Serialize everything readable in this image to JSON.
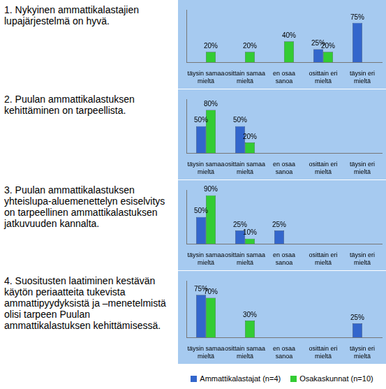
{
  "chart_data": [
    {
      "type": "bar",
      "title": "1. Nykyinen ammattikalastajien lupajärjestelmä on hyvä.",
      "categories": [
        "täysin samaa mieltä",
        "osittain samaa mieltä",
        "en osaa sanoa",
        "osittain eri mieltä",
        "täysin eri mieltä"
      ],
      "series": [
        {
          "name": "Ammattikalastajat (n=4)",
          "color": "#3366cc",
          "values": [
            null,
            null,
            null,
            25,
            75
          ],
          "value_labels": [
            null,
            null,
            null,
            "25%",
            "75%"
          ]
        },
        {
          "name": "Osakaskunnat (n=10)",
          "color": "#33cc33",
          "values": [
            20,
            20,
            40,
            20,
            null
          ],
          "value_labels": [
            "20%",
            "20%",
            "40%",
            "20%",
            null
          ]
        }
      ],
      "ylim": [
        0,
        100
      ],
      "grid": false,
      "data_labels": true,
      "tick_labels": "x"
    },
    {
      "type": "bar",
      "title": "2. Puulan ammattikalastuksen kehittäminen on tarpeellista.",
      "categories": [
        "täysin samaa mieltä",
        "osittain samaa mieltä",
        "en osaa sanoa",
        "osittain eri mieltä",
        "täysin eri mieltä"
      ],
      "series": [
        {
          "name": "Ammattikalastajat (n=4)",
          "color": "#3366cc",
          "values": [
            50,
            50,
            null,
            null,
            null
          ],
          "value_labels": [
            "50%",
            "50%",
            null,
            null,
            null
          ]
        },
        {
          "name": "Osakaskunnat (n=10)",
          "color": "#33cc33",
          "values": [
            80,
            20,
            null,
            null,
            null
          ],
          "value_labels": [
            "80%",
            "20%",
            null,
            null,
            null
          ]
        }
      ],
      "ylim": [
        0,
        100
      ],
      "grid": false,
      "data_labels": true,
      "tick_labels": "x"
    },
    {
      "type": "bar",
      "title": "3. Puulan ammattikalastuksen yhteislupa-aluemenettelyn esiselvitys on tarpeellinen ammattikalastuksen jatkuvuuden kannalta.",
      "categories": [
        "täysin samaa mieltä",
        "osittain samaa mieltä",
        "en osaa sanoa",
        "osittain eri mieltä",
        "täysin eri mieltä"
      ],
      "series": [
        {
          "name": "Ammattikalastajat (n=4)",
          "color": "#3366cc",
          "values": [
            50,
            25,
            25,
            null,
            null
          ],
          "value_labels": [
            "50%",
            "25%",
            "25%",
            null,
            null
          ]
        },
        {
          "name": "Osakaskunnat (n=10)",
          "color": "#33cc33",
          "values": [
            90,
            10,
            null,
            null,
            null
          ],
          "value_labels": [
            "90%",
            "10%",
            null,
            null,
            null
          ]
        }
      ],
      "ylim": [
        0,
        100
      ],
      "grid": false,
      "data_labels": true,
      "tick_labels": "x"
    },
    {
      "type": "bar",
      "title": "4. Suositusten laatiminen kestävän käytön periaatteita tukevista ammattipyydyksistä ja –menetelmistä olisi tarpeen Puulan ammattikalastuksen kehittämisessä.",
      "categories": [
        "täysin samaa mieltä",
        "osittain samaa mieltä",
        "en osaa sanoa",
        "osittain eri mieltä",
        "täysin eri mieltä"
      ],
      "series": [
        {
          "name": "Ammattikalastajat (n=4)",
          "color": "#3366cc",
          "values": [
            75,
            null,
            null,
            null,
            25
          ],
          "value_labels": [
            "75%",
            null,
            null,
            null,
            "25%"
          ]
        },
        {
          "name": "Osakaskunnat (n=10)",
          "color": "#33cc33",
          "values": [
            70,
            30,
            null,
            null,
            null
          ],
          "value_labels": [
            "70%",
            "30%",
            null,
            null,
            null
          ]
        }
      ],
      "ylim": [
        0,
        100
      ],
      "grid": false,
      "data_labels": true,
      "tick_labels": "x",
      "legend": "bottom"
    }
  ]
}
